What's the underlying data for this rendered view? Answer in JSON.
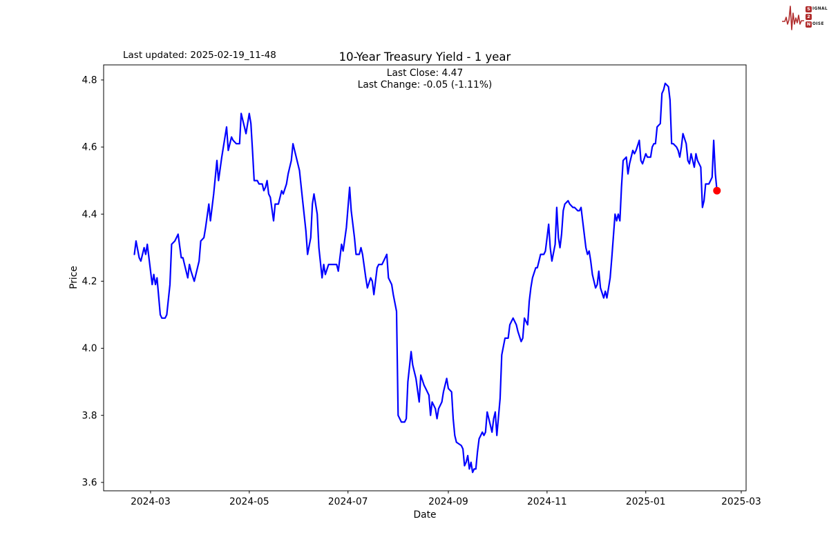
{
  "header": {
    "last_updated": "Last updated: 2025-02-19_11-48",
    "logo": {
      "color": "#b02c2c",
      "s": "S",
      "ignal": "IGNAL",
      "two": "2",
      "n": "N",
      "oise": "OISE"
    }
  },
  "chart_data": {
    "type": "line",
    "title": "10-Year Treasury Yield - 1 year",
    "subtitle_line1": "Last Close: 4.47",
    "subtitle_line2": "Last Change: -0.05 (-1.11%)",
    "xlabel": "Date",
    "ylabel": "Price",
    "last_close": 4.47,
    "last_change": -0.05,
    "last_change_pct": "-1.11%",
    "line_color": "#0000ff",
    "marker_color": "#ff0000",
    "grid": false,
    "legend": "none",
    "xlim": [
      "2024-02-01",
      "2025-03-04"
    ],
    "ylim": [
      3.575,
      4.845
    ],
    "x_ticks": [
      {
        "date": "2024-03-01",
        "label": "2024-03"
      },
      {
        "date": "2024-05-01",
        "label": "2024-05"
      },
      {
        "date": "2024-07-01",
        "label": "2024-07"
      },
      {
        "date": "2024-09-01",
        "label": "2024-09"
      },
      {
        "date": "2024-11-01",
        "label": "2024-11"
      },
      {
        "date": "2025-01-01",
        "label": "2025-01"
      },
      {
        "date": "2025-03-01",
        "label": "2025-03"
      }
    ],
    "y_ticks": [
      3.6,
      3.8,
      4.0,
      4.2,
      4.4,
      4.6,
      4.8
    ],
    "series": [
      {
        "name": "10-Year Treasury Yield",
        "points": [
          [
            "2024-02-20",
            4.28
          ],
          [
            "2024-02-21",
            4.32
          ],
          [
            "2024-02-23",
            4.27
          ],
          [
            "2024-02-24",
            4.26
          ],
          [
            "2024-02-26",
            4.3
          ],
          [
            "2024-02-27",
            4.28
          ],
          [
            "2024-02-28",
            4.31
          ],
          [
            "2024-02-29",
            4.27
          ],
          [
            "2024-03-02",
            4.19
          ],
          [
            "2024-03-03",
            4.22
          ],
          [
            "2024-03-04",
            4.19
          ],
          [
            "2024-03-05",
            4.21
          ],
          [
            "2024-03-07",
            4.1
          ],
          [
            "2024-03-08",
            4.09
          ],
          [
            "2024-03-10",
            4.09
          ],
          [
            "2024-03-11",
            4.1
          ],
          [
            "2024-03-13",
            4.19
          ],
          [
            "2024-03-14",
            4.31
          ],
          [
            "2024-03-16",
            4.32
          ],
          [
            "2024-03-18",
            4.34
          ],
          [
            "2024-03-20",
            4.27
          ],
          [
            "2024-03-21",
            4.27
          ],
          [
            "2024-03-22",
            4.25
          ],
          [
            "2024-03-24",
            4.21
          ],
          [
            "2024-03-25",
            4.25
          ],
          [
            "2024-03-26",
            4.23
          ],
          [
            "2024-03-28",
            4.2
          ],
          [
            "2024-03-31",
            4.26
          ],
          [
            "2024-04-01",
            4.32
          ],
          [
            "2024-04-03",
            4.33
          ],
          [
            "2024-04-04",
            4.36
          ],
          [
            "2024-04-06",
            4.43
          ],
          [
            "2024-04-07",
            4.38
          ],
          [
            "2024-04-09",
            4.46
          ],
          [
            "2024-04-11",
            4.56
          ],
          [
            "2024-04-12",
            4.5
          ],
          [
            "2024-04-14",
            4.57
          ],
          [
            "2024-04-17",
            4.66
          ],
          [
            "2024-04-18",
            4.59
          ],
          [
            "2024-04-20",
            4.63
          ],
          [
            "2024-04-21",
            4.62
          ],
          [
            "2024-04-23",
            4.61
          ],
          [
            "2024-04-25",
            4.61
          ],
          [
            "2024-04-26",
            4.7
          ],
          [
            "2024-04-28",
            4.66
          ],
          [
            "2024-04-29",
            4.64
          ],
          [
            "2024-05-01",
            4.7
          ],
          [
            "2024-05-02",
            4.67
          ],
          [
            "2024-05-03",
            4.59
          ],
          [
            "2024-05-04",
            4.5
          ],
          [
            "2024-05-06",
            4.5
          ],
          [
            "2024-05-07",
            4.49
          ],
          [
            "2024-05-09",
            4.49
          ],
          [
            "2024-05-10",
            4.47
          ],
          [
            "2024-05-11",
            4.48
          ],
          [
            "2024-05-12",
            4.5
          ],
          [
            "2024-05-13",
            4.46
          ],
          [
            "2024-05-14",
            4.45
          ],
          [
            "2024-05-16",
            4.38
          ],
          [
            "2024-05-17",
            4.43
          ],
          [
            "2024-05-19",
            4.43
          ],
          [
            "2024-05-21",
            4.47
          ],
          [
            "2024-05-22",
            4.46
          ],
          [
            "2024-05-24",
            4.49
          ],
          [
            "2024-05-25",
            4.52
          ],
          [
            "2024-05-27",
            4.56
          ],
          [
            "2024-05-28",
            4.61
          ],
          [
            "2024-05-30",
            4.57
          ],
          [
            "2024-06-01",
            4.53
          ],
          [
            "2024-06-03",
            4.44
          ],
          [
            "2024-06-05",
            4.35
          ],
          [
            "2024-06-06",
            4.28
          ],
          [
            "2024-06-08",
            4.33
          ],
          [
            "2024-06-09",
            4.43
          ],
          [
            "2024-06-10",
            4.46
          ],
          [
            "2024-06-12",
            4.4
          ],
          [
            "2024-06-13",
            4.3
          ],
          [
            "2024-06-15",
            4.21
          ],
          [
            "2024-06-16",
            4.25
          ],
          [
            "2024-06-17",
            4.22
          ],
          [
            "2024-06-19",
            4.25
          ],
          [
            "2024-06-20",
            4.25
          ],
          [
            "2024-06-22",
            4.25
          ],
          [
            "2024-06-24",
            4.25
          ],
          [
            "2024-06-25",
            4.23
          ],
          [
            "2024-06-27",
            4.31
          ],
          [
            "2024-06-28",
            4.29
          ],
          [
            "2024-06-30",
            4.36
          ],
          [
            "2024-07-02",
            4.48
          ],
          [
            "2024-07-03",
            4.41
          ],
          [
            "2024-07-05",
            4.33
          ],
          [
            "2024-07-06",
            4.28
          ],
          [
            "2024-07-08",
            4.28
          ],
          [
            "2024-07-09",
            4.3
          ],
          [
            "2024-07-10",
            4.28
          ],
          [
            "2024-07-12",
            4.21
          ],
          [
            "2024-07-13",
            4.18
          ],
          [
            "2024-07-15",
            4.21
          ],
          [
            "2024-07-16",
            4.2
          ],
          [
            "2024-07-17",
            4.16
          ],
          [
            "2024-07-19",
            4.24
          ],
          [
            "2024-07-20",
            4.25
          ],
          [
            "2024-07-22",
            4.25
          ],
          [
            "2024-07-23",
            4.26
          ],
          [
            "2024-07-25",
            4.28
          ],
          [
            "2024-07-26",
            4.21
          ],
          [
            "2024-07-28",
            4.19
          ],
          [
            "2024-07-29",
            4.16
          ],
          [
            "2024-07-31",
            4.11
          ],
          [
            "2024-08-01",
            3.8
          ],
          [
            "2024-08-03",
            3.78
          ],
          [
            "2024-08-05",
            3.78
          ],
          [
            "2024-08-06",
            3.79
          ],
          [
            "2024-08-07",
            3.9
          ],
          [
            "2024-08-09",
            3.99
          ],
          [
            "2024-08-10",
            3.95
          ],
          [
            "2024-08-12",
            3.91
          ],
          [
            "2024-08-14",
            3.84
          ],
          [
            "2024-08-15",
            3.92
          ],
          [
            "2024-08-17",
            3.89
          ],
          [
            "2024-08-18",
            3.88
          ],
          [
            "2024-08-20",
            3.86
          ],
          [
            "2024-08-21",
            3.8
          ],
          [
            "2024-08-22",
            3.84
          ],
          [
            "2024-08-24",
            3.82
          ],
          [
            "2024-08-25",
            3.79
          ],
          [
            "2024-08-26",
            3.82
          ],
          [
            "2024-08-28",
            3.84
          ],
          [
            "2024-08-29",
            3.87
          ],
          [
            "2024-08-31",
            3.91
          ],
          [
            "2024-09-01",
            3.88
          ],
          [
            "2024-09-03",
            3.87
          ],
          [
            "2024-09-04",
            3.79
          ],
          [
            "2024-09-05",
            3.74
          ],
          [
            "2024-09-06",
            3.72
          ],
          [
            "2024-09-09",
            3.71
          ],
          [
            "2024-09-10",
            3.7
          ],
          [
            "2024-09-11",
            3.65
          ],
          [
            "2024-09-12",
            3.66
          ],
          [
            "2024-09-13",
            3.68
          ],
          [
            "2024-09-14",
            3.64
          ],
          [
            "2024-09-15",
            3.66
          ],
          [
            "2024-09-16",
            3.63
          ],
          [
            "2024-09-17",
            3.64
          ],
          [
            "2024-09-18",
            3.64
          ],
          [
            "2024-09-19",
            3.69
          ],
          [
            "2024-09-20",
            3.73
          ],
          [
            "2024-09-22",
            3.75
          ],
          [
            "2024-09-23",
            3.74
          ],
          [
            "2024-09-24",
            3.75
          ],
          [
            "2024-09-25",
            3.81
          ],
          [
            "2024-09-27",
            3.77
          ],
          [
            "2024-09-28",
            3.75
          ],
          [
            "2024-09-29",
            3.79
          ],
          [
            "2024-09-30",
            3.81
          ],
          [
            "2024-10-01",
            3.74
          ],
          [
            "2024-10-03",
            3.85
          ],
          [
            "2024-10-04",
            3.98
          ],
          [
            "2024-10-06",
            4.03
          ],
          [
            "2024-10-08",
            4.03
          ],
          [
            "2024-10-09",
            4.07
          ],
          [
            "2024-10-11",
            4.09
          ],
          [
            "2024-10-13",
            4.07
          ],
          [
            "2024-10-14",
            4.05
          ],
          [
            "2024-10-16",
            4.02
          ],
          [
            "2024-10-17",
            4.03
          ],
          [
            "2024-10-18",
            4.09
          ],
          [
            "2024-10-20",
            4.07
          ],
          [
            "2024-10-21",
            4.14
          ],
          [
            "2024-10-22",
            4.18
          ],
          [
            "2024-10-23",
            4.21
          ],
          [
            "2024-10-25",
            4.24
          ],
          [
            "2024-10-26",
            4.24
          ],
          [
            "2024-10-27",
            4.26
          ],
          [
            "2024-10-28",
            4.28
          ],
          [
            "2024-10-30",
            4.28
          ],
          [
            "2024-10-31",
            4.29
          ],
          [
            "2024-11-01",
            4.33
          ],
          [
            "2024-11-02",
            4.37
          ],
          [
            "2024-11-03",
            4.3
          ],
          [
            "2024-11-04",
            4.26
          ],
          [
            "2024-11-06",
            4.31
          ],
          [
            "2024-11-07",
            4.42
          ],
          [
            "2024-11-08",
            4.33
          ],
          [
            "2024-11-09",
            4.3
          ],
          [
            "2024-11-10",
            4.34
          ],
          [
            "2024-11-11",
            4.41
          ],
          [
            "2024-11-12",
            4.43
          ],
          [
            "2024-11-14",
            4.44
          ],
          [
            "2024-11-15",
            4.43
          ],
          [
            "2024-11-17",
            4.42
          ],
          [
            "2024-11-18",
            4.42
          ],
          [
            "2024-11-20",
            4.41
          ],
          [
            "2024-11-21",
            4.41
          ],
          [
            "2024-11-22",
            4.42
          ],
          [
            "2024-11-23",
            4.38
          ],
          [
            "2024-11-25",
            4.3
          ],
          [
            "2024-11-26",
            4.28
          ],
          [
            "2024-11-27",
            4.29
          ],
          [
            "2024-11-28",
            4.26
          ],
          [
            "2024-11-29",
            4.22
          ],
          [
            "2024-12-01",
            4.18
          ],
          [
            "2024-12-02",
            4.19
          ],
          [
            "2024-12-03",
            4.23
          ],
          [
            "2024-12-04",
            4.18
          ],
          [
            "2024-12-06",
            4.15
          ],
          [
            "2024-12-07",
            4.17
          ],
          [
            "2024-12-08",
            4.15
          ],
          [
            "2024-12-09",
            4.18
          ],
          [
            "2024-12-10",
            4.21
          ],
          [
            "2024-12-11",
            4.27
          ],
          [
            "2024-12-13",
            4.4
          ],
          [
            "2024-12-14",
            4.38
          ],
          [
            "2024-12-15",
            4.4
          ],
          [
            "2024-12-16",
            4.38
          ],
          [
            "2024-12-17",
            4.48
          ],
          [
            "2024-12-18",
            4.56
          ],
          [
            "2024-12-20",
            4.57
          ],
          [
            "2024-12-21",
            4.52
          ],
          [
            "2024-12-22",
            4.55
          ],
          [
            "2024-12-24",
            4.59
          ],
          [
            "2024-12-25",
            4.58
          ],
          [
            "2024-12-26",
            4.59
          ],
          [
            "2024-12-28",
            4.62
          ],
          [
            "2024-12-29",
            4.56
          ],
          [
            "2024-12-30",
            4.55
          ],
          [
            "2025-01-01",
            4.58
          ],
          [
            "2025-01-02",
            4.57
          ],
          [
            "2025-01-04",
            4.57
          ],
          [
            "2025-01-05",
            4.6
          ],
          [
            "2025-01-06",
            4.61
          ],
          [
            "2025-01-07",
            4.61
          ],
          [
            "2025-01-08",
            4.66
          ],
          [
            "2025-01-10",
            4.67
          ],
          [
            "2025-01-11",
            4.76
          ],
          [
            "2025-01-12",
            4.77
          ],
          [
            "2025-01-13",
            4.79
          ],
          [
            "2025-01-15",
            4.78
          ],
          [
            "2025-01-16",
            4.74
          ],
          [
            "2025-01-17",
            4.61
          ],
          [
            "2025-01-18",
            4.61
          ],
          [
            "2025-01-20",
            4.6
          ],
          [
            "2025-01-21",
            4.59
          ],
          [
            "2025-01-22",
            4.57
          ],
          [
            "2025-01-23",
            4.6
          ],
          [
            "2025-01-24",
            4.64
          ],
          [
            "2025-01-26",
            4.61
          ],
          [
            "2025-01-27",
            4.56
          ],
          [
            "2025-01-28",
            4.55
          ],
          [
            "2025-01-29",
            4.58
          ],
          [
            "2025-01-31",
            4.54
          ],
          [
            "2025-02-01",
            4.58
          ],
          [
            "2025-02-02",
            4.56
          ],
          [
            "2025-02-04",
            4.54
          ],
          [
            "2025-02-05",
            4.42
          ],
          [
            "2025-02-06",
            4.44
          ],
          [
            "2025-02-07",
            4.49
          ],
          [
            "2025-02-09",
            4.49
          ],
          [
            "2025-02-10",
            4.5
          ],
          [
            "2025-02-11",
            4.51
          ],
          [
            "2025-02-12",
            4.62
          ],
          [
            "2025-02-13",
            4.52
          ],
          [
            "2025-02-14",
            4.47
          ]
        ]
      }
    ]
  }
}
